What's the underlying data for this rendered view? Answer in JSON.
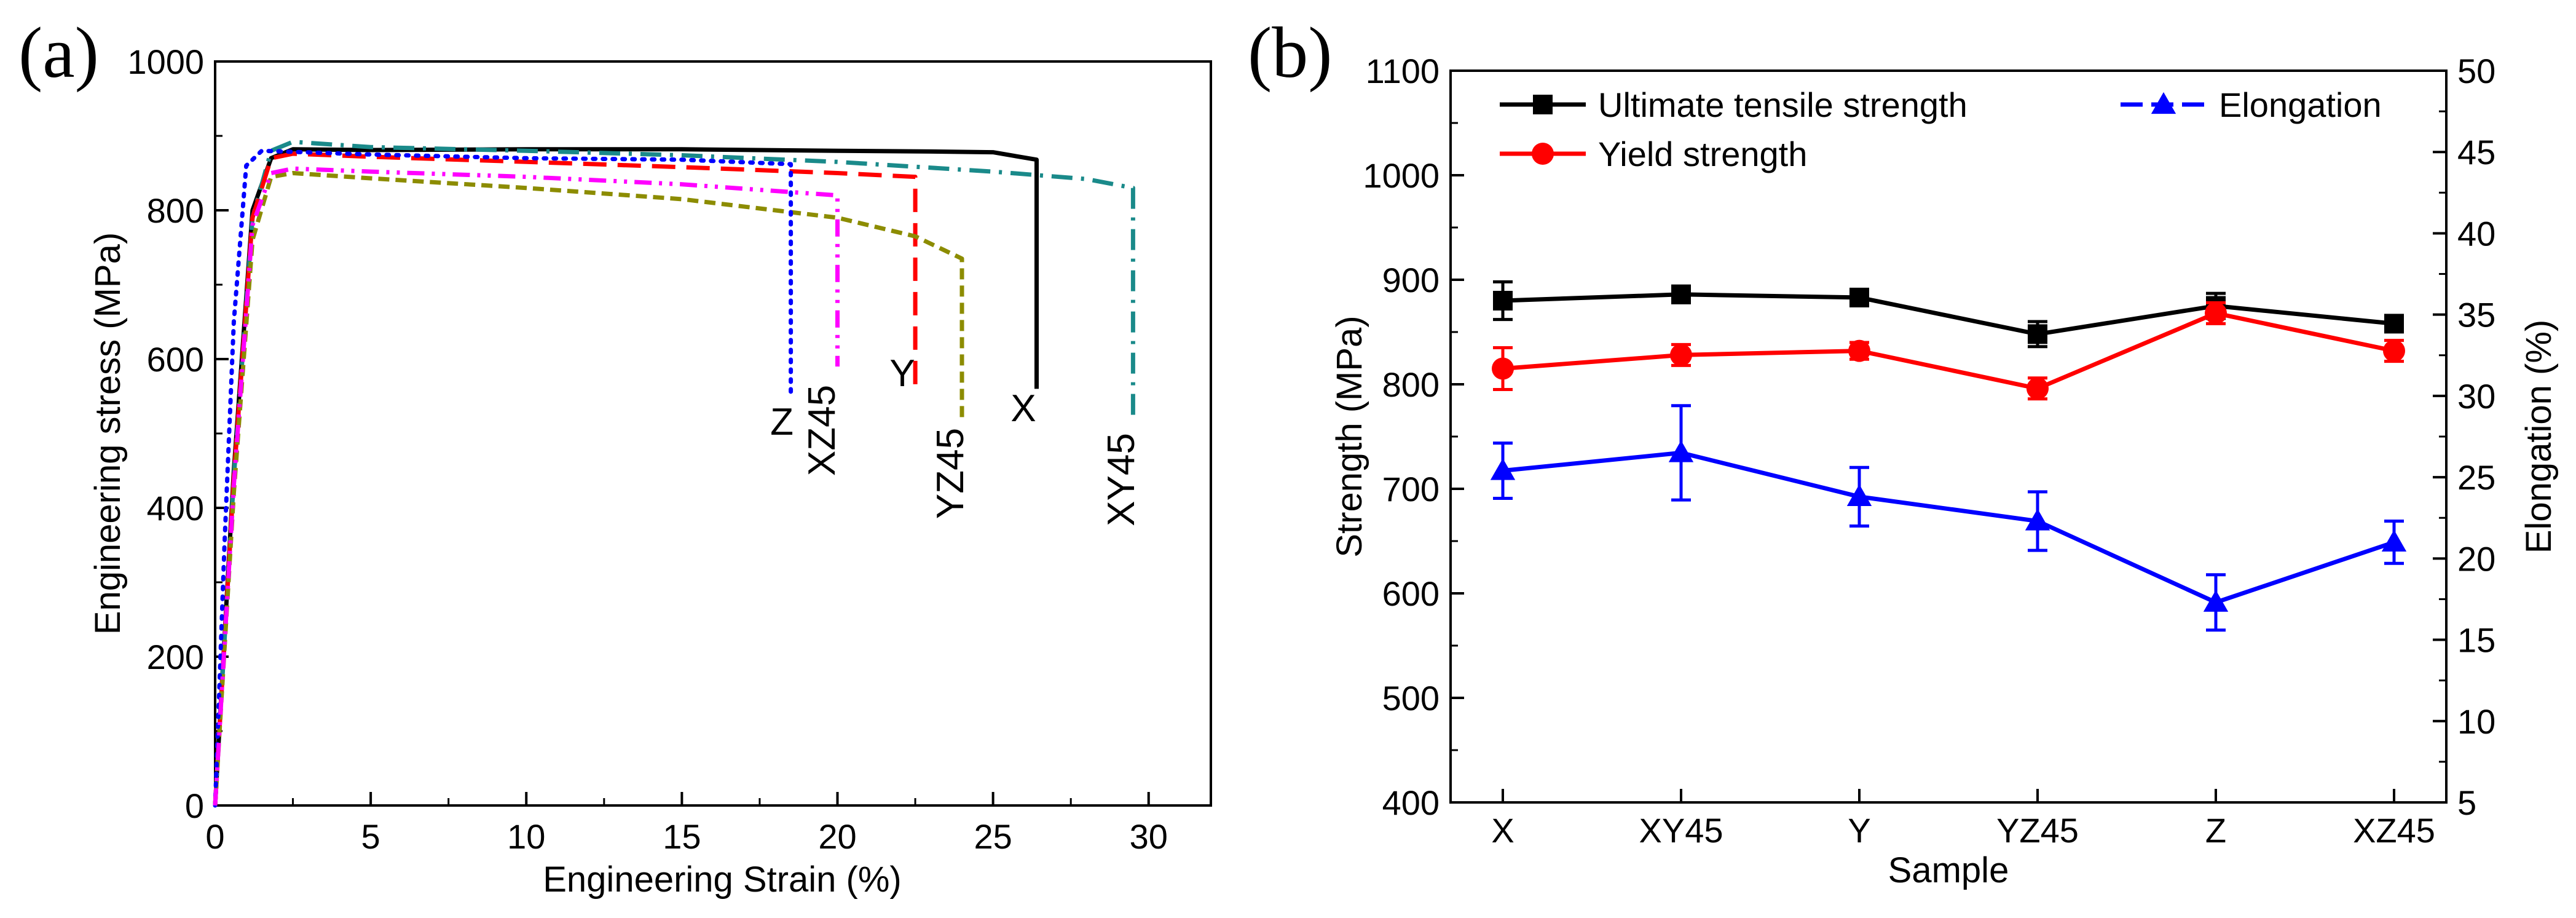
{
  "chart_data": [
    {
      "type": "line",
      "panel_label": "(a)",
      "xlabel": "Engineering Strain (%)",
      "ylabel": "Engineering stress (MPa)",
      "xlim": [
        0,
        32
      ],
      "ylim": [
        0,
        1000
      ],
      "xticks": [
        0,
        5,
        10,
        15,
        20,
        25,
        30
      ],
      "yticks": [
        0,
        200,
        400,
        600,
        800,
        1000
      ],
      "grid": false,
      "series": [
        {
          "name": "X",
          "color": "#000000",
          "dash": "solid",
          "x": [
            0,
            0.6,
            1.2,
            1.8,
            2.5,
            5,
            10,
            15,
            20,
            23,
            25,
            26.4,
            26.4
          ],
          "y": [
            0,
            450,
            800,
            870,
            882,
            881,
            882,
            882,
            880,
            879,
            878,
            868,
            560
          ]
        },
        {
          "name": "XY45",
          "color": "#1a8a8a",
          "dash": "dashdot",
          "x": [
            0,
            0.6,
            1.2,
            1.8,
            2.5,
            5,
            10,
            15,
            20,
            25,
            28,
            29.5,
            29.5
          ],
          "y": [
            0,
            440,
            790,
            880,
            892,
            885,
            880,
            874,
            865,
            852,
            842,
            830,
            520
          ]
        },
        {
          "name": "Y",
          "color": "#ff0000",
          "dash": "dashed",
          "x": [
            0,
            0.6,
            1.2,
            1.8,
            2.5,
            5,
            10,
            15,
            20,
            22.5,
            22.5
          ],
          "y": [
            0,
            440,
            790,
            870,
            876,
            872,
            865,
            858,
            850,
            845,
            555
          ]
        },
        {
          "name": "YZ45",
          "color": "#8c8c00",
          "dash": "shortdash",
          "x": [
            0,
            0.6,
            1.2,
            1.8,
            2.5,
            5,
            10,
            15,
            20,
            22.5,
            24,
            24,
            24
          ],
          "y": [
            0,
            420,
            760,
            845,
            850,
            843,
            830,
            815,
            790,
            765,
            735,
            730,
            515
          ]
        },
        {
          "name": "Z",
          "color": "#0000ff",
          "dash": "dotted",
          "x": [
            0,
            0.3,
            0.6,
            1.0,
            1.5,
            5,
            10,
            15,
            18.5,
            18.5
          ],
          "y": [
            0,
            350,
            650,
            860,
            880,
            875,
            870,
            868,
            862,
            555
          ]
        },
        {
          "name": "XZ45",
          "color": "#ff00ff",
          "dash": "dashdotdot",
          "x": [
            0,
            0.6,
            1.2,
            1.8,
            2.5,
            5,
            10,
            15,
            20,
            20,
            20
          ],
          "y": [
            0,
            430,
            780,
            850,
            856,
            852,
            845,
            835,
            820,
            800,
            590
          ]
        }
      ],
      "annotations": [
        "X",
        "XY45",
        "Y",
        "YZ45",
        "Z",
        "XZ45"
      ]
    },
    {
      "type": "line",
      "panel_label": "(b)",
      "xlabel": "Sample",
      "ylabel": "Strength (MPa)",
      "y2label": "Elongation (%)",
      "categories": [
        "X",
        "XY45",
        "Y",
        "YZ45",
        "Z",
        "XZ45"
      ],
      "ylim": [
        400,
        1100
      ],
      "y2lim": [
        5,
        50
      ],
      "yticks": [
        400,
        500,
        600,
        700,
        800,
        900,
        1000,
        1100
      ],
      "y2ticks": [
        5,
        10,
        15,
        20,
        25,
        30,
        35,
        40,
        45,
        50
      ],
      "legend_position": "top",
      "grid": false,
      "series": [
        {
          "name": "Ultimate tensile strength",
          "axis": "left",
          "color": "#000000",
          "marker": "square",
          "values": [
            880,
            886,
            883,
            848,
            875,
            858
          ],
          "errors": [
            18,
            8,
            6,
            12,
            12,
            6
          ]
        },
        {
          "name": "Yield strength",
          "axis": "left",
          "color": "#ff0000",
          "marker": "circle",
          "values": [
            815,
            828,
            832,
            796,
            868,
            832
          ],
          "errors": [
            20,
            10,
            8,
            10,
            10,
            10
          ]
        },
        {
          "name": "Elongation",
          "axis": "right",
          "color": "#0000ff",
          "marker": "triangle",
          "dash": "dashed-legend",
          "values": [
            25.4,
            26.5,
            23.8,
            22.3,
            17.3,
            21.0
          ],
          "errors": [
            1.7,
            2.9,
            1.8,
            1.8,
            1.7,
            1.3
          ]
        }
      ]
    }
  ]
}
